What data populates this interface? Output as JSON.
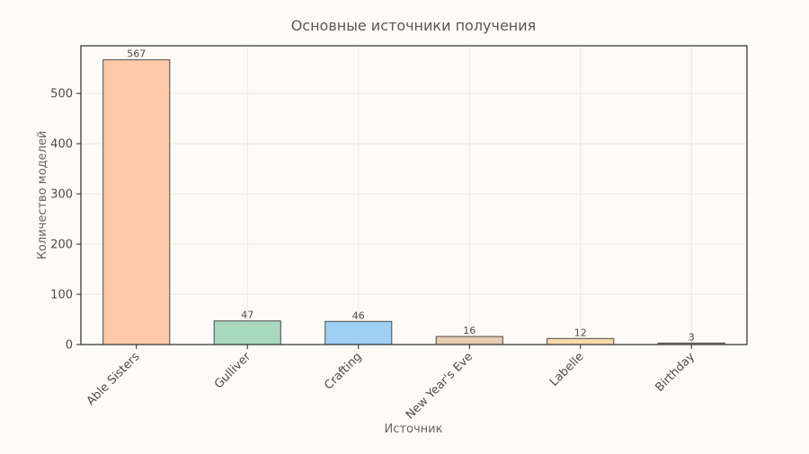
{
  "chart_data": {
    "type": "bar",
    "title": "Основные источники получения",
    "xlabel": "Источник",
    "ylabel": "Количество моделей",
    "categories": [
      "Able Sisters",
      "Gulliver",
      "Crafting",
      "New Year's Eve",
      "Labelle",
      "Birthday"
    ],
    "values": [
      567,
      47,
      46,
      16,
      12,
      3
    ],
    "colors": [
      "#ffc8a8",
      "#a8d8be",
      "#9fd0f4",
      "#e8cdb0",
      "#f8dca8",
      "#c8a890"
    ],
    "ylim": [
      0,
      595
    ],
    "yticks": [
      0,
      100,
      200,
      300,
      400,
      500
    ],
    "grid": true,
    "legend": "none"
  }
}
